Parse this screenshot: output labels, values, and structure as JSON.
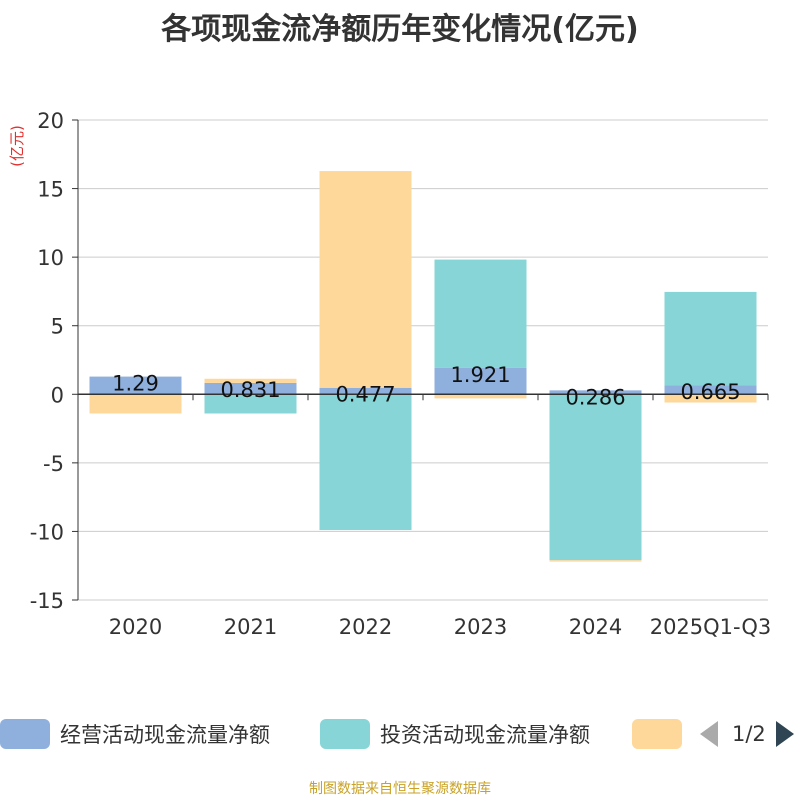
{
  "chart_data": {
    "type": "bar",
    "title": "各项现金流净额历年变化情况(亿元)",
    "ylabel": "(亿元)",
    "xlabel": "",
    "categories": [
      "2020",
      "2021",
      "2022",
      "2023",
      "2024",
      "2025Q1-Q3"
    ],
    "ylim": [
      -15,
      20
    ],
    "yticks": [
      20,
      15,
      10,
      5,
      0,
      -5,
      -10,
      -15
    ],
    "grid": true,
    "series": [
      {
        "name": "经营活动现金流量净额",
        "color": "#8fb0dc",
        "values": [
          1.29,
          0.831,
          0.477,
          1.921,
          0.286,
          0.665
        ]
      },
      {
        "name": "投资活动现金流量净额",
        "color": "#87d5d7",
        "values": [
          0.0,
          -1.4,
          -9.9,
          7.9,
          -12.1,
          6.8
        ]
      },
      {
        "name": "",
        "color": "#fed89a",
        "values": [
          -1.4,
          0.3,
          15.8,
          -0.3,
          -0.1,
          -0.6
        ]
      }
    ],
    "data_labels": [
      "1.29",
      "0.831",
      "0.477",
      "1.921",
      "0.286",
      "0.665"
    ]
  },
  "legend": {
    "items": [
      {
        "label": "经营活动现金流量净额",
        "color": "#8fb0dc"
      },
      {
        "label": "投资活动现金流量净额",
        "color": "#87d5d7"
      },
      {
        "label": "",
        "color": "#fed89a"
      }
    ],
    "page": "1/2"
  },
  "footer": {
    "source": "制图数据来自恒生聚源数据库"
  }
}
